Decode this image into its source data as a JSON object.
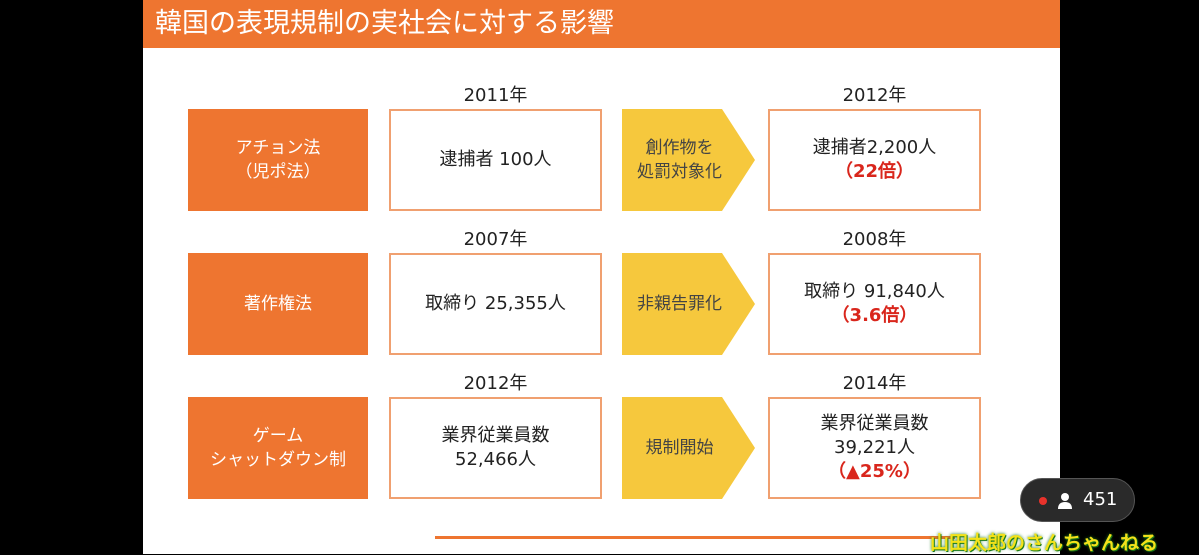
{
  "header": {
    "title": "韓国の表現規制の実社会に対する影響"
  },
  "rows": [
    {
      "law": [
        "アチョン法",
        "（児ポ法）"
      ],
      "before_year": "2011年",
      "before": [
        "逮捕者 100人"
      ],
      "action": [
        "創作物を",
        "処罰対象化"
      ],
      "after_year": "2012年",
      "after": [
        "逮捕者2,200人"
      ],
      "change": "（22倍）"
    },
    {
      "law": [
        "著作権法"
      ],
      "before_year": "2007年",
      "before": [
        "取締り 25,355人"
      ],
      "action": [
        "非親告罪化"
      ],
      "after_year": "2008年",
      "after": [
        "取締り 91,840人"
      ],
      "change": "（3.6倍）"
    },
    {
      "law": [
        "ゲーム",
        "シャットダウン制"
      ],
      "before_year": "2012年",
      "before": [
        "業界従業員数",
        "52,466人"
      ],
      "action": [
        "規制開始"
      ],
      "after_year": "2014年",
      "after": [
        "業界従業員数",
        "39,221人"
      ],
      "change": "（▲25%）"
    }
  ],
  "viewer_count": "451",
  "channel_logo": "山田太郎のさんちゃんねる"
}
